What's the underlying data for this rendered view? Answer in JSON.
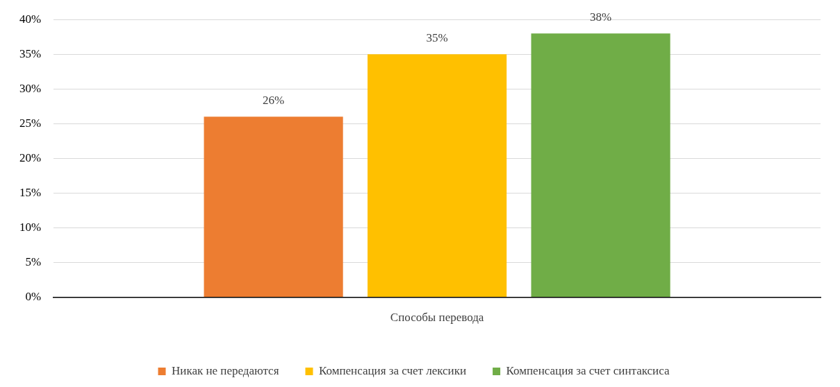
{
  "chart_data": {
    "type": "bar",
    "categories": [
      "Способы перевода"
    ],
    "series": [
      {
        "name": "Никак не передаются",
        "color": "#ed7d31",
        "values": [
          26
        ],
        "value_labels": [
          "26%"
        ]
      },
      {
        "name": "Компенсация за счет лексики",
        "color": "#ffc000",
        "values": [
          35
        ],
        "value_labels": [
          "35%"
        ]
      },
      {
        "name": "Компенсация за счет синтаксиса",
        "color": "#70ad47",
        "values": [
          38
        ],
        "value_labels": [
          "38%"
        ]
      }
    ],
    "ylim": [
      0,
      40
    ],
    "yticks": [
      {
        "value": 0,
        "label": "0%"
      },
      {
        "value": 5,
        "label": "5%"
      },
      {
        "value": 10,
        "label": "10%"
      },
      {
        "value": 15,
        "label": "15%"
      },
      {
        "value": 20,
        "label": "20%"
      },
      {
        "value": 25,
        "label": "25%"
      },
      {
        "value": 30,
        "label": "30%"
      },
      {
        "value": 35,
        "label": "35%"
      },
      {
        "value": 40,
        "label": "40%"
      }
    ],
    "grid": "y",
    "legend": "bottom"
  }
}
